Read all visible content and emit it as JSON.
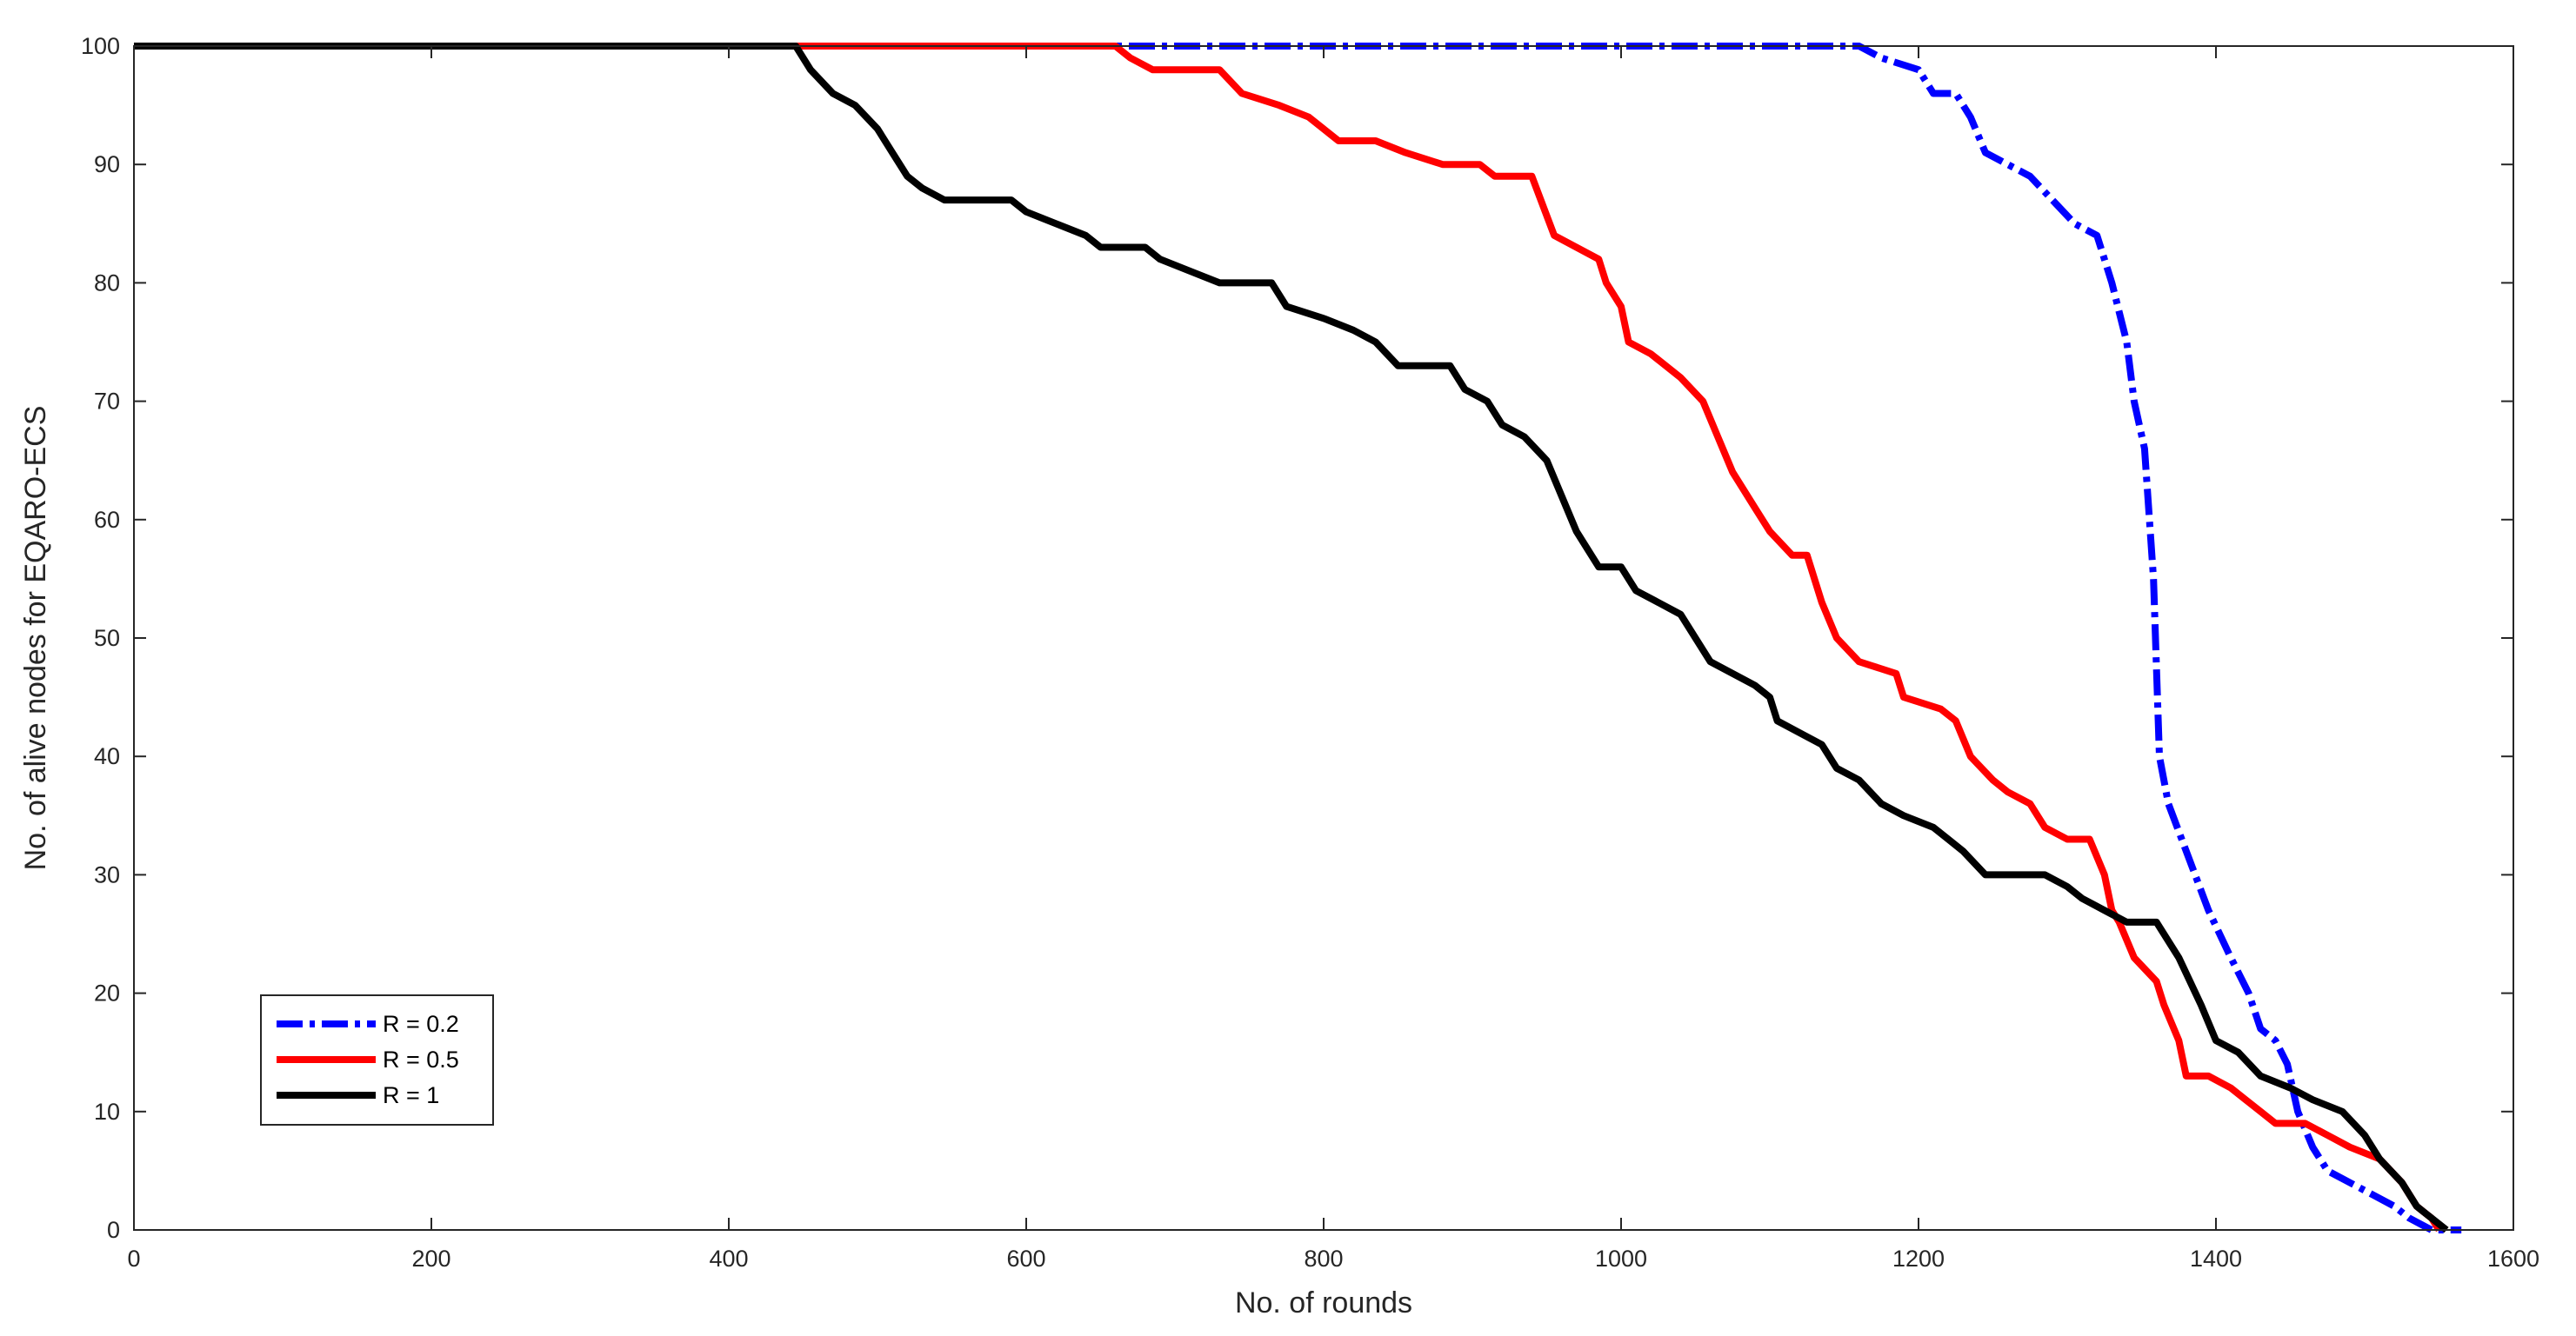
{
  "chart_data": {
    "type": "line",
    "title": "",
    "xlabel": "No. of rounds",
    "ylabel": "No. of alive nodes for EQARO-ECS",
    "xlim": [
      0,
      1600
    ],
    "ylim": [
      0,
      100
    ],
    "xticks": [
      0,
      200,
      400,
      600,
      800,
      1000,
      1200,
      1400,
      1600
    ],
    "yticks": [
      0,
      10,
      20,
      30,
      40,
      50,
      60,
      70,
      80,
      90,
      100
    ],
    "grid": false,
    "legend_position": "bottom-left",
    "series": [
      {
        "name": "R = 0.2",
        "color": "#0000ff",
        "style": "dashdot",
        "points": [
          [
            0,
            100
          ],
          [
            1160,
            100
          ],
          [
            1175,
            99
          ],
          [
            1200,
            98
          ],
          [
            1210,
            96
          ],
          [
            1225,
            96
          ],
          [
            1235,
            94
          ],
          [
            1245,
            91
          ],
          [
            1260,
            90
          ],
          [
            1275,
            89
          ],
          [
            1290,
            87
          ],
          [
            1305,
            85
          ],
          [
            1320,
            84
          ],
          [
            1330,
            80
          ],
          [
            1340,
            75
          ],
          [
            1345,
            70
          ],
          [
            1352,
            66
          ],
          [
            1358,
            55
          ],
          [
            1362,
            40
          ],
          [
            1368,
            36
          ],
          [
            1380,
            32
          ],
          [
            1395,
            27
          ],
          [
            1410,
            23
          ],
          [
            1422,
            20
          ],
          [
            1430,
            17
          ],
          [
            1440,
            16
          ],
          [
            1448,
            14
          ],
          [
            1455,
            10
          ],
          [
            1465,
            7
          ],
          [
            1475,
            5
          ],
          [
            1490,
            4
          ],
          [
            1505,
            3
          ],
          [
            1520,
            2
          ],
          [
            1530,
            1
          ],
          [
            1545,
            0
          ],
          [
            1565,
            0
          ]
        ]
      },
      {
        "name": "R = 0.5",
        "color": "#ff0000",
        "style": "solid",
        "points": [
          [
            0,
            100
          ],
          [
            660,
            100
          ],
          [
            670,
            99
          ],
          [
            685,
            98
          ],
          [
            730,
            98
          ],
          [
            745,
            96
          ],
          [
            770,
            95
          ],
          [
            790,
            94
          ],
          [
            810,
            92
          ],
          [
            835,
            92
          ],
          [
            855,
            91
          ],
          [
            880,
            90
          ],
          [
            905,
            90
          ],
          [
            915,
            89
          ],
          [
            940,
            89
          ],
          [
            955,
            84
          ],
          [
            985,
            82
          ],
          [
            990,
            80
          ],
          [
            1000,
            78
          ],
          [
            1005,
            75
          ],
          [
            1020,
            74
          ],
          [
            1040,
            72
          ],
          [
            1055,
            70
          ],
          [
            1065,
            67
          ],
          [
            1075,
            64
          ],
          [
            1090,
            61
          ],
          [
            1100,
            59
          ],
          [
            1115,
            57
          ],
          [
            1125,
            57
          ],
          [
            1135,
            53
          ],
          [
            1145,
            50
          ],
          [
            1160,
            48
          ],
          [
            1185,
            47
          ],
          [
            1190,
            45
          ],
          [
            1215,
            44
          ],
          [
            1225,
            43
          ],
          [
            1235,
            40
          ],
          [
            1250,
            38
          ],
          [
            1260,
            37
          ],
          [
            1275,
            36
          ],
          [
            1285,
            34
          ],
          [
            1300,
            33
          ],
          [
            1315,
            33
          ],
          [
            1325,
            30
          ],
          [
            1330,
            27
          ],
          [
            1335,
            26
          ],
          [
            1345,
            23
          ],
          [
            1360,
            21
          ],
          [
            1365,
            19
          ],
          [
            1375,
            16
          ],
          [
            1380,
            13
          ],
          [
            1395,
            13
          ],
          [
            1410,
            12
          ],
          [
            1420,
            11
          ],
          [
            1430,
            10
          ],
          [
            1440,
            9
          ],
          [
            1460,
            9
          ],
          [
            1475,
            8
          ],
          [
            1490,
            7
          ],
          [
            1510,
            6
          ],
          [
            1525,
            4
          ],
          [
            1535,
            2
          ],
          [
            1545,
            1
          ],
          [
            1550,
            0
          ]
        ]
      },
      {
        "name": "R = 1",
        "color": "#000000",
        "style": "solid",
        "points": [
          [
            0,
            100
          ],
          [
            445,
            100
          ],
          [
            455,
            98
          ],
          [
            470,
            96
          ],
          [
            485,
            95
          ],
          [
            500,
            93
          ],
          [
            510,
            91
          ],
          [
            520,
            89
          ],
          [
            530,
            88
          ],
          [
            545,
            87
          ],
          [
            590,
            87
          ],
          [
            600,
            86
          ],
          [
            620,
            85
          ],
          [
            640,
            84
          ],
          [
            650,
            83
          ],
          [
            680,
            83
          ],
          [
            690,
            82
          ],
          [
            710,
            81
          ],
          [
            730,
            80
          ],
          [
            765,
            80
          ],
          [
            775,
            78
          ],
          [
            800,
            77
          ],
          [
            820,
            76
          ],
          [
            835,
            75
          ],
          [
            850,
            73
          ],
          [
            885,
            73
          ],
          [
            895,
            71
          ],
          [
            910,
            70
          ],
          [
            920,
            68
          ],
          [
            935,
            67
          ],
          [
            950,
            65
          ],
          [
            960,
            62
          ],
          [
            970,
            59
          ],
          [
            985,
            56
          ],
          [
            1000,
            56
          ],
          [
            1010,
            54
          ],
          [
            1025,
            53
          ],
          [
            1040,
            52
          ],
          [
            1050,
            50
          ],
          [
            1060,
            48
          ],
          [
            1075,
            47
          ],
          [
            1090,
            46
          ],
          [
            1100,
            45
          ],
          [
            1105,
            43
          ],
          [
            1120,
            42
          ],
          [
            1135,
            41
          ],
          [
            1145,
            39
          ],
          [
            1160,
            38
          ],
          [
            1175,
            36
          ],
          [
            1190,
            35
          ],
          [
            1210,
            34
          ],
          [
            1220,
            33
          ],
          [
            1230,
            32
          ],
          [
            1245,
            30
          ],
          [
            1285,
            30
          ],
          [
            1300,
            29
          ],
          [
            1310,
            28
          ],
          [
            1325,
            27
          ],
          [
            1340,
            26
          ],
          [
            1360,
            26
          ],
          [
            1375,
            23
          ],
          [
            1390,
            19
          ],
          [
            1400,
            16
          ],
          [
            1415,
            15
          ],
          [
            1430,
            13
          ],
          [
            1450,
            12
          ],
          [
            1465,
            11
          ],
          [
            1485,
            10
          ],
          [
            1500,
            8
          ],
          [
            1510,
            6
          ],
          [
            1525,
            4
          ],
          [
            1535,
            2
          ],
          [
            1545,
            1
          ],
          [
            1555,
            0
          ]
        ]
      }
    ]
  }
}
